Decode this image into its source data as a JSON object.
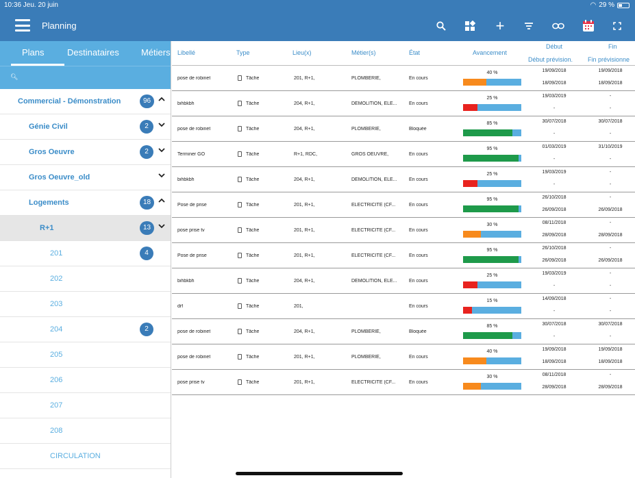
{
  "status_bar": {
    "time": "10:36  Jeu. 20 juin",
    "battery": "29 %"
  },
  "toolbar": {
    "title": "Planning",
    "icons": [
      "menu-icon",
      "search-icon",
      "grid-icon",
      "add-icon",
      "filter-icon",
      "link-icon",
      "calendar-icon",
      "fullscreen-icon"
    ]
  },
  "sidebar": {
    "tabs": [
      "Plans",
      "Destinataires",
      "Métiers"
    ],
    "active_tab": "Plans",
    "items": [
      {
        "label": "Commercial - Démonstration",
        "badge": "96",
        "chevron": "^",
        "level": 0,
        "leaf": false,
        "selected": false
      },
      {
        "label": "Génie Civil",
        "badge": "2",
        "chevron": "v",
        "level": 1,
        "leaf": false,
        "selected": false
      },
      {
        "label": "Gros Oeuvre",
        "badge": "2",
        "chevron": "v",
        "level": 1,
        "leaf": false,
        "selected": false
      },
      {
        "label": "Gros Oeuvre_old",
        "badge": "",
        "chevron": "v",
        "level": 1,
        "leaf": false,
        "selected": false
      },
      {
        "label": "Logements",
        "badge": "18",
        "chevron": "^",
        "level": 1,
        "leaf": false,
        "selected": false
      },
      {
        "label": "R+1",
        "badge": "13",
        "chevron": "v",
        "level": 2,
        "leaf": false,
        "selected": true
      },
      {
        "label": "201",
        "badge": "4",
        "chevron": "",
        "level": 3,
        "leaf": true,
        "selected": false
      },
      {
        "label": "202",
        "badge": "",
        "chevron": "",
        "level": 3,
        "leaf": true,
        "selected": false
      },
      {
        "label": "203",
        "badge": "",
        "chevron": "",
        "level": 3,
        "leaf": true,
        "selected": false
      },
      {
        "label": "204",
        "badge": "2",
        "chevron": "",
        "level": 3,
        "leaf": true,
        "selected": false
      },
      {
        "label": "205",
        "badge": "",
        "chevron": "",
        "level": 3,
        "leaf": true,
        "selected": false
      },
      {
        "label": "206",
        "badge": "",
        "chevron": "",
        "level": 3,
        "leaf": true,
        "selected": false
      },
      {
        "label": "207",
        "badge": "",
        "chevron": "",
        "level": 3,
        "leaf": true,
        "selected": false
      },
      {
        "label": "208",
        "badge": "",
        "chevron": "",
        "level": 3,
        "leaf": true,
        "selected": false
      },
      {
        "label": "CIRCULATION",
        "badge": "",
        "chevron": "",
        "level": 3,
        "leaf": true,
        "selected": false
      }
    ]
  },
  "table": {
    "headers": {
      "libelle": "Libellé",
      "type": "Type",
      "lieu": "Lieu(x)",
      "metier": "Métier(s)",
      "etat": "État",
      "avancement": "Avancement",
      "debut": "Début",
      "debut_prev": "Début prévision.",
      "fin": "Fin",
      "fin_prev": "Fin prévisionne"
    },
    "rows": [
      {
        "libelle": "pose de robinet",
        "type": "Tâche",
        "lieu": "201,  R+1,",
        "metier": "PLOMBERIE,",
        "etat": "En cours",
        "progress": 40,
        "color": "#f78a1d",
        "debut": "19/09/2018",
        "debut_prev": "18/09/2018",
        "fin": "19/09/2018",
        "fin_prev": "18/09/2018"
      },
      {
        "libelle": "bihbkbh",
        "type": "Tâche",
        "lieu": "204,  R+1,",
        "metier": "DEMOLITION, ELE...",
        "etat": "En cours",
        "progress": 25,
        "color": "#e8231f",
        "debut": "19/03/2019",
        "debut_prev": "-",
        "fin": "-",
        "fin_prev": "-"
      },
      {
        "libelle": "pose de robinet",
        "type": "Tâche",
        "lieu": "204,  R+1,",
        "metier": "PLOMBERIE,",
        "etat": "Bloquée",
        "progress": 85,
        "color": "#1e9a4a",
        "debut": "30/07/2018",
        "debut_prev": "-",
        "fin": "30/07/2018",
        "fin_prev": "-"
      },
      {
        "libelle": "Terminer GO",
        "type": "Tâche",
        "lieu": "R+1, RDC,",
        "metier": "GROS OEUVRE,",
        "etat": "En cours",
        "progress": 95,
        "color": "#1e9a4a",
        "debut": "01/03/2019",
        "debut_prev": "-",
        "fin": "31/10/2019",
        "fin_prev": "-"
      },
      {
        "libelle": "bihbkbh",
        "type": "Tâche",
        "lieu": "204,  R+1,",
        "metier": "DEMOLITION, ELE...",
        "etat": "En cours",
        "progress": 25,
        "color": "#e8231f",
        "debut": "19/03/2019",
        "debut_prev": "-",
        "fin": "-",
        "fin_prev": "-"
      },
      {
        "libelle": "Pose de prise",
        "type": "Tâche",
        "lieu": "201,  R+1,",
        "metier": "ELECTRICITE (CF...",
        "etat": "En cours",
        "progress": 95,
        "color": "#1e9a4a",
        "debut": "26/10/2018",
        "debut_prev": "26/09/2018",
        "fin": "-",
        "fin_prev": "26/09/2018"
      },
      {
        "libelle": "pose prise tv",
        "type": "Tâche",
        "lieu": "201,  R+1,",
        "metier": "ELECTRICITE (CF...",
        "etat": "En cours",
        "progress": 30,
        "color": "#f78a1d",
        "debut": "08/11/2018",
        "debut_prev": "28/09/2018",
        "fin": "-",
        "fin_prev": "28/09/2018"
      },
      {
        "libelle": "Pose de prise",
        "type": "Tâche",
        "lieu": "201,  R+1,",
        "metier": "ELECTRICITE (CF...",
        "etat": "En cours",
        "progress": 95,
        "color": "#1e9a4a",
        "debut": "26/10/2018",
        "debut_prev": "26/09/2018",
        "fin": "-",
        "fin_prev": "26/09/2018"
      },
      {
        "libelle": "bihbkbh",
        "type": "Tâche",
        "lieu": "204,  R+1,",
        "metier": "DEMOLITION, ELE...",
        "etat": "En cours",
        "progress": 25,
        "color": "#e8231f",
        "debut": "19/03/2019",
        "debut_prev": "-",
        "fin": "-",
        "fin_prev": "-"
      },
      {
        "libelle": "drf",
        "type": "Tâche",
        "lieu": "201,",
        "metier": "",
        "etat": "En cours",
        "progress": 15,
        "color": "#e8231f",
        "debut": "14/09/2018",
        "debut_prev": "-",
        "fin": "-",
        "fin_prev": "-"
      },
      {
        "libelle": "pose de robinet",
        "type": "Tâche",
        "lieu": "204,  R+1,",
        "metier": "PLOMBERIE,",
        "etat": "Bloquée",
        "progress": 85,
        "color": "#1e9a4a",
        "debut": "30/07/2018",
        "debut_prev": "-",
        "fin": "30/07/2018",
        "fin_prev": "-"
      },
      {
        "libelle": "pose de robinet",
        "type": "Tâche",
        "lieu": "201,  R+1,",
        "metier": "PLOMBERIE,",
        "etat": "En cours",
        "progress": 40,
        "color": "#f78a1d",
        "debut": "19/09/2018",
        "debut_prev": "18/09/2018",
        "fin": "19/09/2018",
        "fin_prev": "18/09/2018"
      },
      {
        "libelle": "pose prise tv",
        "type": "Tâche",
        "lieu": "201,  R+1,",
        "metier": "ELECTRICITE (CF...",
        "etat": "En cours",
        "progress": 30,
        "color": "#f78a1d",
        "debut": "08/11/2018",
        "debut_prev": "28/09/2018",
        "fin": "-",
        "fin_prev": "28/09/2018"
      }
    ]
  }
}
